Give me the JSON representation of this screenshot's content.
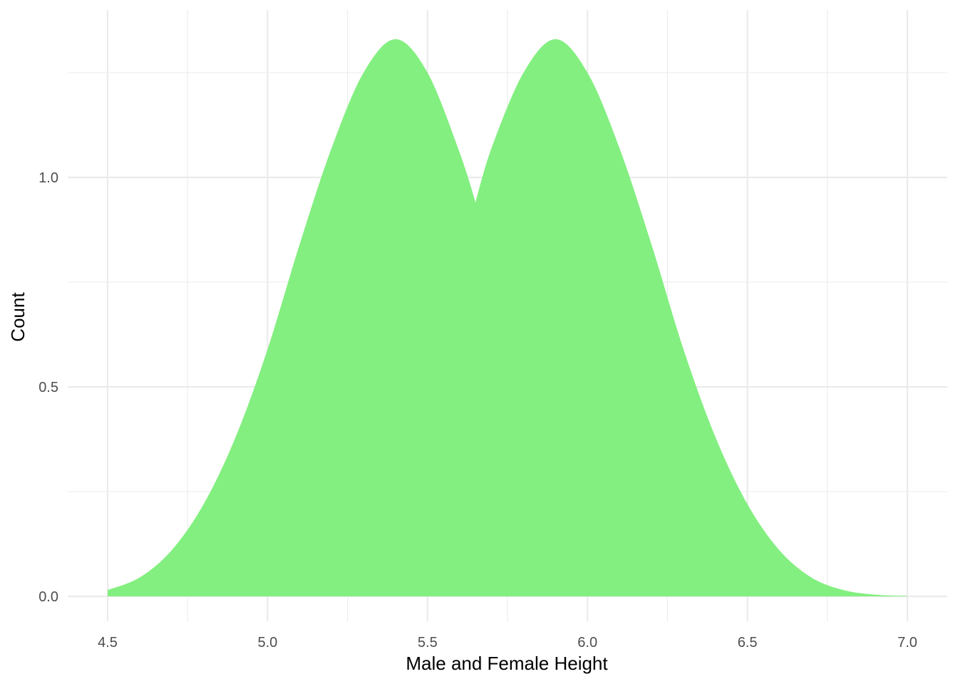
{
  "chart_data": {
    "type": "area",
    "title": "",
    "xlabel": "Male and Female Height",
    "ylabel": "Count",
    "xlim": [
      4.5,
      7.0
    ],
    "ylim": [
      0.0,
      1.33
    ],
    "grid": true,
    "x_ticks": [
      4.5,
      5.0,
      5.5,
      6.0,
      6.5,
      7.0
    ],
    "x_tick_labels": [
      "4.5",
      "5.0",
      "5.5",
      "6.0",
      "6.5",
      "7.0"
    ],
    "y_ticks": [
      0.0,
      0.5,
      1.0
    ],
    "y_tick_labels": [
      "0.0",
      "0.5",
      "1.0"
    ],
    "fill_color": "#83ef80",
    "series": [
      {
        "x": [
          4.5,
          4.6,
          4.7,
          4.8,
          4.9,
          5.0,
          5.1,
          5.2,
          5.3,
          5.4,
          5.5,
          5.6,
          5.65,
          5.7,
          5.8,
          5.9,
          6.0,
          6.1,
          6.2,
          6.3,
          6.4,
          6.5,
          6.6,
          6.7,
          6.8,
          6.9,
          7.0
        ],
        "values": [
          0.015,
          0.045,
          0.11,
          0.22,
          0.38,
          0.59,
          0.84,
          1.07,
          1.25,
          1.33,
          1.25,
          1.06,
          0.94,
          1.07,
          1.25,
          1.33,
          1.25,
          1.07,
          0.84,
          0.59,
          0.38,
          0.22,
          0.11,
          0.045,
          0.015,
          0.004,
          0.001
        ]
      }
    ]
  }
}
